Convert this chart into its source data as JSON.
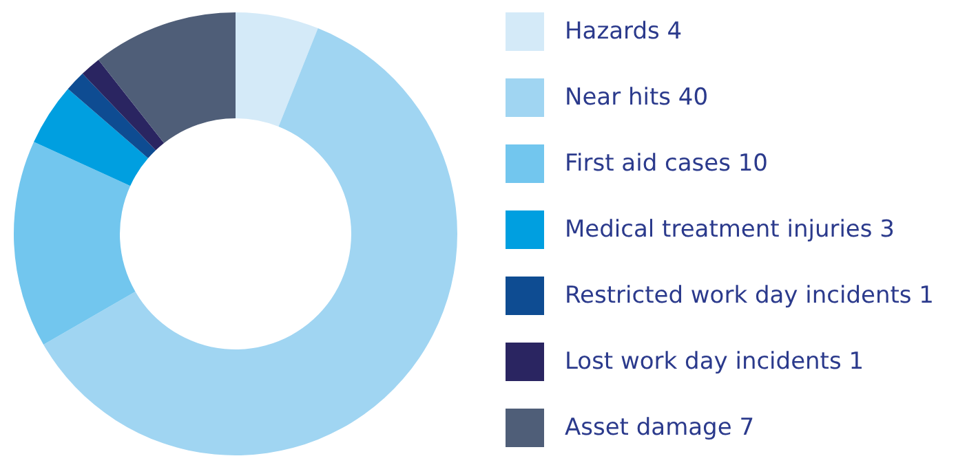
{
  "chart_data": {
    "type": "donut",
    "categories": [
      "Hazards 4",
      "Near hits 40",
      "First aid cases 10",
      "Medical treatment injuries 3",
      "Restricted work day incidents 1",
      "Lost work day incidents 1",
      "Asset damage 7"
    ],
    "values": [
      4,
      40,
      10,
      3,
      1,
      1,
      7
    ],
    "colors": [
      "#d4eaf8",
      "#a0d5f2",
      "#72c6ee",
      "#009fe0",
      "#0e4c92",
      "#2a2561",
      "#4f5e78"
    ],
    "legend": "right"
  }
}
